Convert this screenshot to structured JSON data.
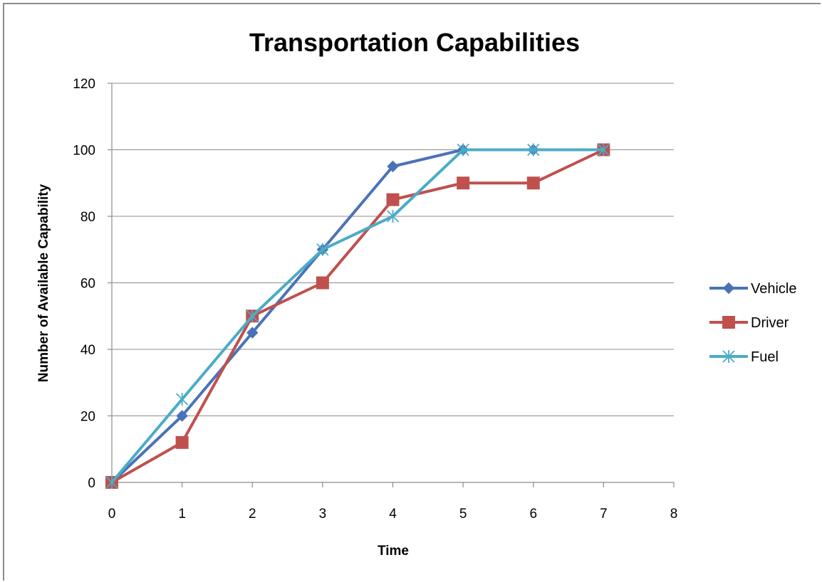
{
  "chart_data": {
    "type": "line",
    "title": "Transportation Capabilities",
    "xlabel": "Time",
    "ylabel": "Number of Available  Capability",
    "xlim": [
      0,
      8
    ],
    "ylim": [
      0,
      120
    ],
    "x_ticks": [
      0,
      1,
      2,
      3,
      4,
      5,
      6,
      7,
      8
    ],
    "y_ticks": [
      0,
      20,
      40,
      60,
      80,
      100,
      120
    ],
    "grid": "horizontal",
    "legend_position": "right",
    "series": [
      {
        "name": "Vehicle",
        "color": "#4a72b8",
        "marker": "diamond",
        "x": [
          0,
          1,
          2,
          3,
          4,
          5,
          6,
          7
        ],
        "y": [
          0,
          20,
          45,
          70,
          95,
          100,
          100,
          100
        ]
      },
      {
        "name": "Driver",
        "color": "#c0504d",
        "marker": "square",
        "x": [
          0,
          1,
          2,
          3,
          4,
          5,
          6,
          7
        ],
        "y": [
          0,
          12,
          50,
          60,
          85,
          90,
          90,
          100
        ]
      },
      {
        "name": "Fuel",
        "color": "#4bacc6",
        "marker": "star",
        "x": [
          0,
          1,
          2,
          3,
          4,
          5,
          6,
          7
        ],
        "y": [
          0,
          25,
          50,
          70,
          80,
          100,
          100,
          100
        ]
      }
    ]
  }
}
